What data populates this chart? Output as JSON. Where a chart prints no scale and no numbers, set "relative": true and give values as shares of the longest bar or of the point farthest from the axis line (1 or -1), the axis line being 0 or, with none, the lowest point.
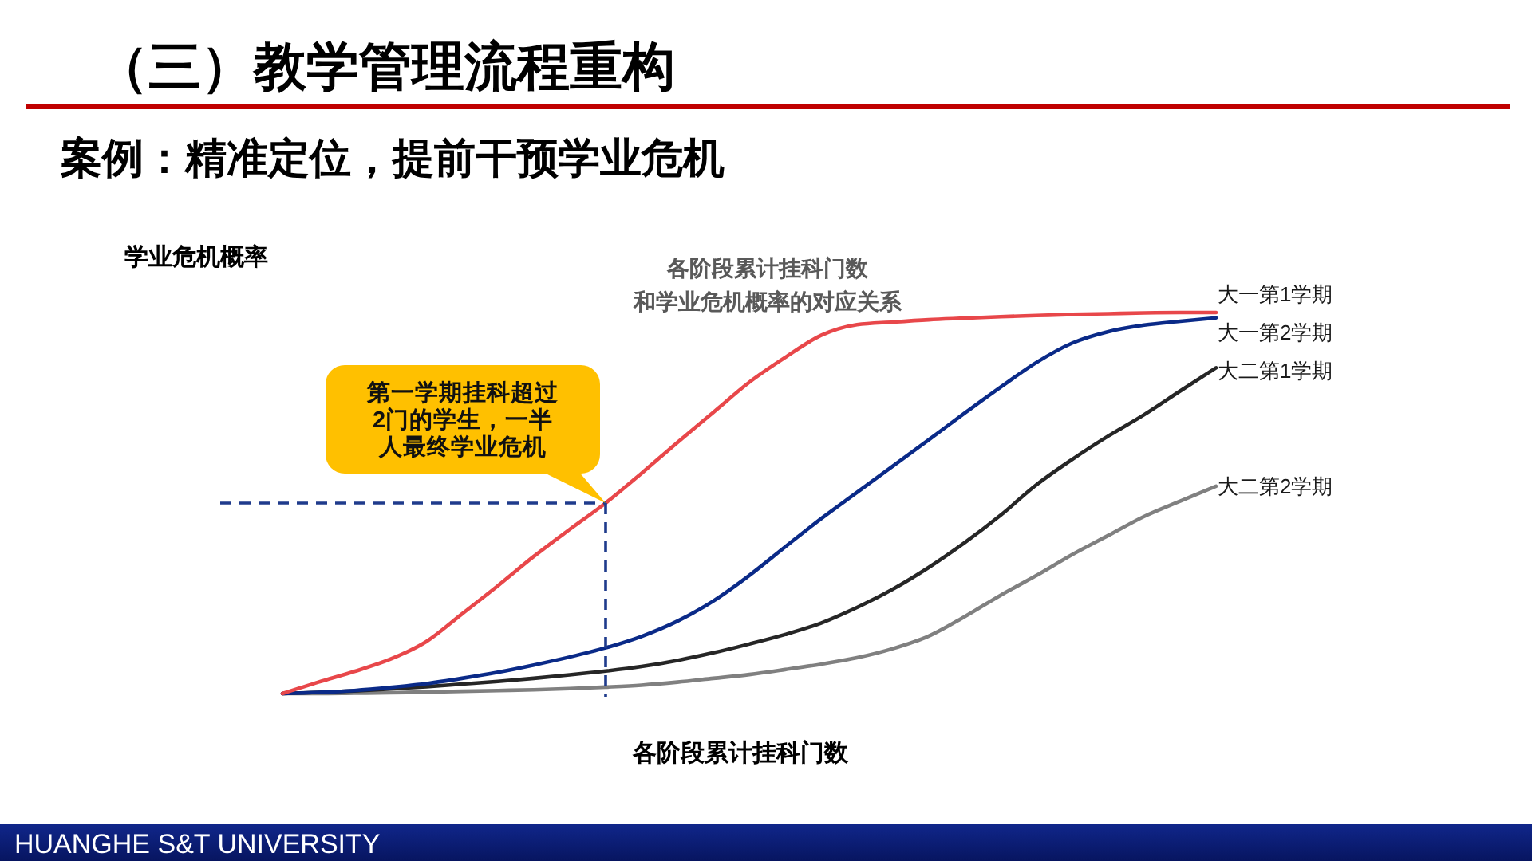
{
  "chart_data": {
    "type": "line",
    "relative": true,
    "title": "各阶段累计挂科门数",
    "subtitle": "和学业危机概率的对应关系",
    "xlabel": "各阶段累计挂科门数",
    "ylabel": "学业危机概率",
    "categories": [
      null,
      null,
      null,
      null,
      null,
      null,
      null,
      null,
      null,
      null,
      null,
      null,
      null,
      null,
      null,
      null,
      null,
      null,
      null,
      null,
      null,
      null,
      null,
      null,
      null,
      null,
      null
    ],
    "series": [
      {
        "name": "大一第1学期",
        "color": "#e8474a",
        "values": [
          0,
          0.03,
          0.058,
          0.09,
          0.136,
          0.209,
          0.283,
          0.36,
          0.431,
          0.5,
          0.578,
          0.659,
          0.738,
          0.817,
          0.882,
          0.94,
          0.968,
          0.975,
          0.981,
          0.985,
          0.989,
          0.992,
          0.995,
          0.997,
          0.999,
          1,
          1
        ]
      },
      {
        "name": "大一第2学期",
        "color": "#0a2a88",
        "values": [
          0,
          0.003,
          0.008,
          0.016,
          0.026,
          0.04,
          0.056,
          0.075,
          0.096,
          0.12,
          0.15,
          0.19,
          0.243,
          0.31,
          0.385,
          0.459,
          0.528,
          0.597,
          0.666,
          0.736,
          0.804,
          0.869,
          0.92,
          0.95,
          0.967,
          0.977,
          0.986
        ]
      },
      {
        "name": "大二第1学期",
        "color": "#262626",
        "values": [
          0,
          0.003,
          0.007,
          0.012,
          0.018,
          0.025,
          0.032,
          0.04,
          0.049,
          0.059,
          0.071,
          0.087,
          0.107,
          0.13,
          0.155,
          0.185,
          0.226,
          0.274,
          0.331,
          0.396,
          0.468,
          0.548,
          0.615,
          0.676,
          0.732,
          0.794,
          0.855
        ]
      },
      {
        "name": "大二第2学期",
        "color": "#808080",
        "values": [
          0,
          0,
          0.001,
          0.002,
          0.004,
          0.006,
          0.008,
          0.01,
          0.013,
          0.017,
          0.022,
          0.03,
          0.04,
          0.05,
          0.063,
          0.077,
          0.094,
          0.118,
          0.151,
          0.202,
          0.258,
          0.31,
          0.365,
          0.415,
          0.465,
          0.505,
          0.544
        ]
      }
    ],
    "ref_lines": [
      {
        "axis": "y",
        "value": 0.5,
        "color": "#1f3b8c",
        "line_style": "dashed"
      }
    ],
    "annotations": [
      "（三）教学管理流程重构",
      "案例：精准定位，提前干预学业危机",
      "第一学期挂科超过2门的学生，一半人最终学业危机",
      "HUANGHE S&T UNIVERSITY"
    ]
  }
}
